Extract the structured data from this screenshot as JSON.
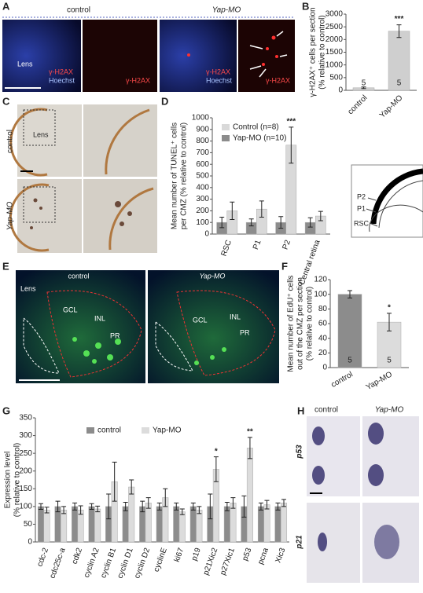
{
  "chart_data": [
    {
      "type": "bar",
      "panel": "B",
      "ylabel": [
        "γ-H2AX⁺ cells per section",
        "(% relative to control)"
      ],
      "categories": [
        "control",
        "Yap-MO"
      ],
      "ylim": [
        0,
        3000
      ],
      "yticks": [
        0,
        500,
        1000,
        1500,
        2000,
        2500,
        3000
      ],
      "series": [
        {
          "name": "Yap-MO",
          "color": "#cfcfcf",
          "values": [
            100,
            2330
          ],
          "errors": [
            30,
            250
          ],
          "bar_labels": [
            "5",
            "5"
          ]
        }
      ],
      "significance": [
        null,
        "***"
      ]
    },
    {
      "type": "bar",
      "panel": "D",
      "ylabel": [
        "Mean number of TUNEL⁺ cells",
        "per CMZ (% relative to control)"
      ],
      "categories": [
        "RSC",
        "P1",
        "P2",
        "Central retina"
      ],
      "ylim": [
        0,
        1000
      ],
      "yticks": [
        0,
        100,
        200,
        300,
        400,
        500,
        600,
        700,
        800,
        900,
        1000
      ],
      "series": [
        {
          "name": "Yap-MO (n=10)",
          "color": "#8c8c8c",
          "values": [
            100,
            100,
            100,
            100
          ],
          "errors": [
            45,
            30,
            50,
            40
          ]
        },
        {
          "name": "Control (n=8)",
          "color": "#d9d9d9",
          "values": [
            200,
            215,
            765,
            155
          ],
          "errors": [
            75,
            70,
            155,
            40
          ]
        }
      ],
      "legend_order": [
        1,
        0
      ],
      "significance": [
        null,
        null,
        "***",
        null
      ]
    },
    {
      "type": "bar",
      "panel": "F",
      "ylabel": [
        "Mean number of EdU⁺ cells",
        "out of the CMZ per section",
        "(% relative to control)"
      ],
      "categories": [
        "control",
        "Yap-MO"
      ],
      "ylim": [
        0,
        120
      ],
      "yticks": [
        0,
        20,
        40,
        60,
        80,
        100,
        120
      ],
      "series": [
        {
          "name": "EdU",
          "color": "#9a9a9a",
          "values": [
            100,
            62
          ],
          "errors": [
            5,
            12
          ],
          "bar_labels": [
            "5",
            "5"
          ]
        }
      ],
      "bar_colors": [
        "#8c8c8c",
        "#dcdcdc"
      ],
      "significance": [
        null,
        "*"
      ]
    },
    {
      "type": "bar",
      "panel": "G",
      "ylabel": [
        "Expression level",
        "(% relative to control)"
      ],
      "categories": [
        "cdc-2",
        "cdc25c-a",
        "cdk2",
        "cyclin A2",
        "cyclin B1",
        "cyclin D1",
        "cyclin D2",
        "cyclinE",
        "ki67",
        "p19",
        "p21Xic2",
        "p27Xic1",
        "p53",
        "pcna",
        "Xic3"
      ],
      "ylim": [
        0,
        350
      ],
      "yticks": [
        0,
        50,
        100,
        150,
        200,
        250,
        300,
        350
      ],
      "series": [
        {
          "name": "control",
          "color": "#8c8c8c",
          "values": [
            100,
            100,
            100,
            100,
            100,
            100,
            100,
            100,
            100,
            100,
            100,
            100,
            100,
            100,
            100
          ],
          "errors": [
            8,
            15,
            10,
            8,
            35,
            12,
            15,
            10,
            10,
            10,
            35,
            12,
            30,
            10,
            10
          ]
        },
        {
          "name": "Yap-MO",
          "color": "#dcdcdc",
          "values": [
            90,
            90,
            90,
            93,
            170,
            155,
            110,
            125,
            85,
            90,
            205,
            110,
            265,
            105,
            110
          ],
          "errors": [
            8,
            10,
            12,
            8,
            55,
            20,
            15,
            25,
            8,
            10,
            35,
            15,
            30,
            12,
            10
          ]
        }
      ],
      "significance": [
        null,
        null,
        null,
        null,
        null,
        null,
        null,
        null,
        null,
        null,
        "*",
        null,
        "**",
        null,
        null
      ]
    }
  ],
  "images": {
    "letters": [
      "A",
      "B",
      "C",
      "D",
      "E",
      "F",
      "G",
      "H"
    ],
    "a": {
      "control": "control",
      "yap": "Yap-MO",
      "lens": "Lens",
      "g1": "γ-H2AX",
      "h1": "Hoechst",
      "g2": "γ-H2AX",
      "g3": "γ-H2AX",
      "h3": "Hoechst",
      "g4": "γ-H2AX"
    },
    "c": {
      "control": "control",
      "yap": "Yap-MO",
      "lens": "Lens"
    },
    "inset": {
      "p2": "P2",
      "p1": "P1",
      "rsc": "RSC"
    },
    "e": {
      "control": "control",
      "yap": "Yap-MO",
      "lens": "Lens",
      "gcl1": "GCL",
      "inl1": "INL",
      "pr1": "PR",
      "gcl2": "GCL",
      "inl2": "INL",
      "pr2": "PR"
    },
    "h": {
      "control": "control",
      "yap": "Yap-MO",
      "p53": "p53",
      "p21": "p21"
    }
  }
}
